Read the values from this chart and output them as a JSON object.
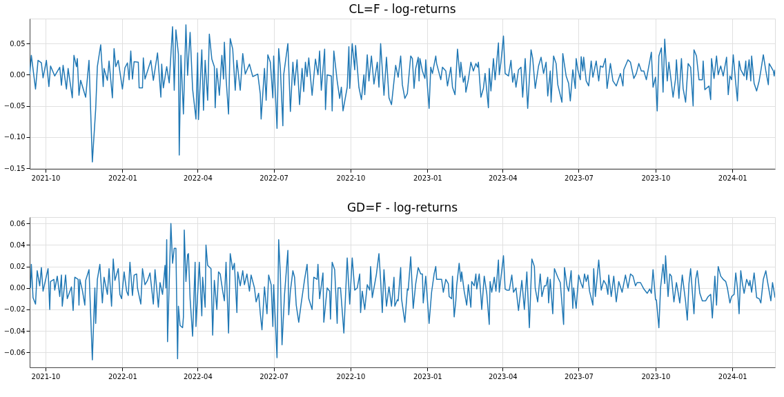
{
  "chart_data": [
    {
      "type": "line",
      "title": "CL=F - log-returns",
      "grid": true,
      "xlim": [
        "2021-09-12",
        "2024-02-21"
      ],
      "xticks": [
        "2021-10",
        "2022-01",
        "2022-04",
        "2022-07",
        "2022-10",
        "2023-01",
        "2023-04",
        "2023-07",
        "2023-10",
        "2024-01"
      ],
      "ylim": [
        -0.151,
        0.09
      ],
      "yticks": [
        {
          "value": -0.15,
          "label": "−0.15"
        },
        {
          "value": -0.1,
          "label": "−0.10"
        },
        {
          "value": -0.05,
          "label": "−0.05"
        },
        {
          "value": 0,
          "label": "0.00"
        },
        {
          "value": 0.05,
          "label": "0.05"
        }
      ],
      "x": [
        "2021-09-12",
        "2021-09-14",
        "2021-09-19",
        "2021-09-22",
        "2021-09-26",
        "2021-09-28",
        "2021-10-02",
        "2021-10-05",
        "2021-10-07",
        "2021-10-12",
        "2021-10-18",
        "2021-10-20",
        "2021-10-22",
        "2021-10-26",
        "2021-10-28",
        "2021-11-02",
        "2021-11-04",
        "2021-11-07",
        "2021-11-08",
        "2021-11-10",
        "2021-11-12",
        "2021-11-18",
        "2021-11-22",
        "2021-11-26",
        "2021-11-30",
        "2021-12-02",
        "2021-12-06",
        "2021-12-09",
        "2021-12-10",
        "2021-12-14",
        "2021-12-16",
        "2021-12-20",
        "2021-12-22",
        "2021-12-24",
        "2021-12-27",
        "2022-01-01",
        "2022-01-04",
        "2022-01-07",
        "2022-01-09",
        "2022-01-11",
        "2022-01-13",
        "2022-01-15",
        "2022-01-20",
        "2022-01-21",
        "2022-01-25",
        "2022-01-26",
        "2022-01-28",
        "2022-02-04",
        "2022-02-07",
        "2022-02-12",
        "2022-02-16",
        "2022-02-17",
        "2022-02-19",
        "2022-02-23",
        "2022-02-26",
        "2022-03-02",
        "2022-03-04",
        "2022-03-06",
        "2022-03-09",
        "2022-03-10",
        "2022-03-12",
        "2022-03-15",
        "2022-03-18",
        "2022-03-20",
        "2022-03-23",
        "2022-03-26",
        "2022-03-30",
        "2022-04-01",
        "2022-04-02",
        "2022-04-06",
        "2022-04-08",
        "2022-04-10",
        "2022-04-13",
        "2022-04-15",
        "2022-04-18",
        "2022-04-21",
        "2022-04-22",
        "2022-04-24",
        "2022-04-27",
        "2022-04-30",
        "2022-05-02",
        "2022-05-03",
        "2022-05-05",
        "2022-05-08",
        "2022-05-10",
        "2022-05-13",
        "2022-05-16",
        "2022-05-18",
        "2022-05-22",
        "2022-05-25",
        "2022-05-28",
        "2022-06-02",
        "2022-06-06",
        "2022-06-12",
        "2022-06-15",
        "2022-06-16",
        "2022-06-20",
        "2022-06-22",
        "2022-06-24",
        "2022-06-27",
        "2022-06-30",
        "2022-07-01",
        "2022-07-05",
        "2022-07-07",
        "2022-07-09",
        "2022-07-12",
        "2022-07-13",
        "2022-07-18",
        "2022-07-21",
        "2022-07-24",
        "2022-07-26",
        "2022-07-29",
        "2022-08-01",
        "2022-08-04",
        "2022-08-06",
        "2022-08-08",
        "2022-08-10",
        "2022-08-12",
        "2022-08-16",
        "2022-08-20",
        "2022-08-23",
        "2022-08-25",
        "2022-08-27",
        "2022-08-31",
        "2022-09-01",
        "2022-09-03",
        "2022-09-08",
        "2022-09-09",
        "2022-09-11",
        "2022-09-15",
        "2022-09-18",
        "2022-09-20",
        "2022-09-22",
        "2022-09-27",
        "2022-09-29",
        "2022-09-30",
        "2022-10-03",
        "2022-10-06",
        "2022-10-07",
        "2022-10-11",
        "2022-10-14",
        "2022-10-17",
        "2022-10-18",
        "2022-10-21",
        "2022-10-23",
        "2022-10-26",
        "2022-10-29",
        "2022-11-02",
        "2022-11-04",
        "2022-11-06",
        "2022-11-10",
        "2022-11-13",
        "2022-11-16",
        "2022-11-19",
        "2022-11-24",
        "2022-11-27",
        "2022-11-30",
        "2022-12-02",
        "2022-12-05",
        "2022-12-08",
        "2022-12-12",
        "2022-12-14",
        "2022-12-16",
        "2022-12-18",
        "2022-12-21",
        "2022-12-22",
        "2022-12-23",
        "2022-12-26",
        "2022-12-29",
        "2022-12-30",
        "2023-01-01",
        "2023-01-03",
        "2023-01-05",
        "2023-01-07",
        "2023-01-11",
        "2023-01-12",
        "2023-01-17",
        "2023-01-19",
        "2023-01-23",
        "2023-01-25",
        "2023-01-29",
        "2023-01-31",
        "2023-02-03",
        "2023-02-06",
        "2023-02-09",
        "2023-02-10",
        "2023-02-13",
        "2023-02-15",
        "2023-02-16",
        "2023-02-19",
        "2023-02-22",
        "2023-02-25",
        "2023-02-28",
        "2023-03-02",
        "2023-03-03",
        "2023-03-06",
        "2023-03-09",
        "2023-03-11",
        "2023-03-15",
        "2023-03-16",
        "2023-03-18",
        "2023-03-21",
        "2023-03-23",
        "2023-03-27",
        "2023-03-28",
        "2023-03-30",
        "2023-04-02",
        "2023-04-04",
        "2023-04-08",
        "2023-04-11",
        "2023-04-13",
        "2023-04-15",
        "2023-04-17",
        "2023-04-20",
        "2023-04-23",
        "2023-04-25",
        "2023-04-28",
        "2023-05-01",
        "2023-05-05",
        "2023-05-07",
        "2023-05-10",
        "2023-05-14",
        "2023-05-17",
        "2023-05-20",
        "2023-05-23",
        "2023-05-25",
        "2023-05-28",
        "2023-05-29",
        "2023-06-01",
        "2023-06-04",
        "2023-06-06",
        "2023-06-11",
        "2023-06-12",
        "2023-06-16",
        "2023-06-19",
        "2023-06-21",
        "2023-06-24",
        "2023-06-27",
        "2023-06-28",
        "2023-06-30",
        "2023-07-03",
        "2023-07-04",
        "2023-07-06",
        "2023-07-07",
        "2023-07-10",
        "2023-07-13",
        "2023-07-16",
        "2023-07-18",
        "2023-07-22",
        "2023-07-25",
        "2023-07-27",
        "2023-07-30",
        "2023-08-02",
        "2023-08-04",
        "2023-08-08",
        "2023-08-11",
        "2023-08-15",
        "2023-08-20",
        "2023-08-23",
        "2023-08-24",
        "2023-08-29",
        "2023-09-01",
        "2023-09-05",
        "2023-09-08",
        "2023-09-11",
        "2023-09-14",
        "2023-09-17",
        "2023-09-20",
        "2023-09-26",
        "2023-09-28",
        "2023-10-01",
        "2023-10-03",
        "2023-10-05",
        "2023-10-08",
        "2023-10-10",
        "2023-10-12",
        "2023-10-15",
        "2023-10-17",
        "2023-10-22",
        "2023-10-25",
        "2023-10-26",
        "2023-10-29",
        "2023-11-01",
        "2023-11-03",
        "2023-11-06",
        "2023-11-09",
        "2023-11-12",
        "2023-11-15",
        "2023-11-16",
        "2023-11-19",
        "2023-11-22",
        "2023-11-26",
        "2023-11-27",
        "2023-11-29",
        "2023-12-04",
        "2023-12-06",
        "2023-12-07",
        "2023-12-10",
        "2023-12-13",
        "2023-12-15",
        "2023-12-18",
        "2023-12-21",
        "2023-12-25",
        "2023-12-27",
        "2023-12-29",
        "2023-12-31",
        "2024-01-02",
        "2024-01-05",
        "2024-01-07",
        "2024-01-09",
        "2024-01-11",
        "2024-01-15",
        "2024-01-17",
        "2024-01-18",
        "2024-01-21",
        "2024-01-23",
        "2024-01-24",
        "2024-01-27",
        "2024-01-30",
        "2024-02-02",
        "2024-02-04",
        "2024-02-07",
        "2024-02-10",
        "2024-02-13",
        "2024-02-14",
        "2024-02-19",
        "2024-02-20",
        "2024-02-21"
      ],
      "series": [
        {
          "color": "#1f77b4",
          "values": [
            0.0,
            0.031,
            -0.023,
            0.023,
            0.019,
            -0.005,
            0.023,
            -0.019,
            0.014,
            -0.002,
            0.012,
            -0.017,
            0.015,
            -0.023,
            0.01,
            -0.037,
            0.031,
            0.013,
            0.026,
            -0.033,
            -0.009,
            -0.036,
            0.023,
            -0.14,
            -0.055,
            0.013,
            0.048,
            -0.019,
            0.01,
            -0.009,
            0.022,
            -0.037,
            0.042,
            0.013,
            0.023,
            -0.023,
            0.011,
            0.019,
            -0.008,
            0.038,
            -0.007,
            0.021,
            0.02,
            -0.021,
            -0.021,
            0.027,
            -0.007,
            0.023,
            -0.009,
            0.035,
            -0.036,
            0.017,
            -0.021,
            0.013,
            -0.013,
            0.077,
            -0.025,
            0.072,
            0.033,
            -0.129,
            0.031,
            -0.063,
            0.08,
            -0.001,
            0.068,
            -0.023,
            -0.071,
            0.035,
            -0.072,
            0.04,
            -0.057,
            0.023,
            -0.041,
            0.065,
            0.025,
            0.013,
            -0.053,
            0.01,
            -0.033,
            0.031,
            -0.007,
            0.052,
            -0.005,
            -0.063,
            0.058,
            0.041,
            -0.025,
            0.023,
            -0.025,
            0.034,
            0.001,
            0.017,
            -0.003,
            0.001,
            -0.031,
            -0.071,
            0.01,
            -0.041,
            0.032,
            0.02,
            -0.037,
            0.03,
            -0.086,
            0.042,
            0.01,
            -0.082,
            0.0,
            0.05,
            -0.059,
            0.02,
            -0.017,
            0.024,
            -0.048,
            0.01,
            -0.027,
            0.02,
            -0.003,
            0.027,
            -0.033,
            0.025,
            0.0,
            0.038,
            -0.025,
            0.041,
            -0.056,
            0.0,
            -0.002,
            -0.058,
            0.038,
            -0.01,
            -0.038,
            -0.02,
            -0.058,
            -0.02,
            0.045,
            -0.022,
            0.05,
            0.008,
            0.047,
            -0.02,
            -0.04,
            0.0,
            -0.032,
            0.032,
            -0.01,
            0.03,
            -0.015,
            0.02,
            -0.02,
            0.05,
            -0.033,
            0.028,
            -0.037,
            -0.048,
            0.015,
            -0.004,
            0.03,
            -0.016,
            -0.038,
            -0.03,
            0.03,
            0.026,
            -0.022,
            0.01,
            0.028,
            -0.01,
            0.026,
            0.006,
            -0.006,
            0.024,
            -0.018,
            -0.054,
            0.012,
            0.002,
            0.03,
            0.018,
            -0.008,
            0.012,
            0.006,
            -0.018,
            0.012,
            -0.02,
            -0.032,
            0.041,
            -0.004,
            0.02,
            -0.012,
            -0.002,
            -0.028,
            -0.008,
            0.02,
            0.006,
            0.018,
            0.012,
            0.02,
            -0.036,
            -0.022,
            0.002,
            -0.053,
            0.01,
            -0.026,
            0.026,
            -0.008,
            0.051,
            0.0,
            0.02,
            0.062,
            0.002,
            -0.002,
            0.023,
            -0.012,
            0.002,
            -0.02,
            0.008,
            0.012,
            -0.036,
            0.026,
            -0.054,
            0.04,
            0.026,
            -0.022,
            0.014,
            0.028,
            0.002,
            0.02,
            -0.034,
            0.006,
            -0.044,
            0.03,
            0.018,
            -0.016,
            -0.044,
            0.034,
            -0.002,
            -0.014,
            -0.042,
            0.008,
            -0.022,
            0.026,
            0.008,
            -0.008,
            0.029,
            0.006,
            0.028,
            -0.01,
            -0.018,
            0.022,
            -0.004,
            0.022,
            -0.01,
            0.014,
            0.012,
            0.026,
            -0.022,
            0.018,
            -0.01,
            -0.018,
            0.002,
            -0.018,
            0.008,
            0.024,
            0.02,
            -0.006,
            0.002,
            0.018,
            0.006,
            0.006,
            -0.008,
            0.036,
            -0.02,
            -0.004,
            -0.058,
            0.03,
            0.043,
            -0.028,
            0.057,
            -0.01,
            0.02,
            -0.036,
            -0.006,
            0.024,
            -0.038,
            0.026,
            -0.022,
            -0.044,
            0.018,
            0.012,
            -0.05,
            0.04,
            0.03,
            -0.008,
            -0.008,
            0.022,
            -0.024,
            -0.018,
            -0.04,
            0.026,
            -0.006,
            0.03,
            0.0,
            0.014,
            -0.002,
            0.028,
            -0.032,
            -0.002,
            -0.008,
            0.032,
            -0.014,
            -0.042,
            0.022,
            0.008,
            -0.002,
            0.022,
            -0.008,
            0.024,
            -0.01,
            0.03,
            -0.014,
            -0.026,
            -0.01,
            0.006,
            0.032,
            0.006,
            -0.016,
            0.018,
            0.006,
            -0.002,
            0.008
          ]
        }
      ]
    },
    {
      "type": "line",
      "title": "GD=F - log-returns",
      "grid": true,
      "xlim": [
        "2021-09-12",
        "2024-02-21"
      ],
      "xticks": [
        "2021-10",
        "2022-01",
        "2022-04",
        "2022-07",
        "2022-10",
        "2023-01",
        "2023-04",
        "2023-07",
        "2023-10",
        "2024-01"
      ],
      "ylim": [
        -0.074,
        0.066
      ],
      "yticks": [
        {
          "value": -0.06,
          "label": "−0.06"
        },
        {
          "value": -0.04,
          "label": "−0.04"
        },
        {
          "value": -0.02,
          "label": "−0.02"
        },
        {
          "value": 0,
          "label": "0.00"
        },
        {
          "value": 0.02,
          "label": "0.02"
        },
        {
          "value": 0.04,
          "label": "0.04"
        },
        {
          "value": 0.06,
          "label": "0.06"
        }
      ],
      "x": [
        "2021-09-13",
        "2021-09-14",
        "2021-09-16",
        "2021-09-19",
        "2021-09-21",
        "2021-09-24",
        "2021-09-26",
        "2021-09-28",
        "2021-10-04",
        "2021-10-06",
        "2021-10-07",
        "2021-10-11",
        "2021-10-12",
        "2021-10-15",
        "2021-10-18",
        "2021-10-20",
        "2021-10-21",
        "2021-10-25",
        "2021-10-27",
        "2021-11-01",
        "2021-11-03",
        "2021-11-05",
        "2021-11-09",
        "2021-11-10",
        "2021-11-11",
        "2021-11-14",
        "2021-11-17",
        "2021-11-18",
        "2021-11-22",
        "2021-11-26",
        "2021-11-29",
        "2021-11-30",
        "2021-12-02",
        "2021-12-05",
        "2021-12-08",
        "2021-12-10",
        "2021-12-14",
        "2021-12-16",
        "2021-12-19",
        "2021-12-21",
        "2021-12-23",
        "2021-12-27",
        "2021-12-29",
        "2021-12-31",
        "2022-01-03",
        "2022-01-06",
        "2022-01-08",
        "2022-01-10",
        "2022-01-13",
        "2022-01-15",
        "2022-01-18",
        "2022-01-19",
        "2022-01-23",
        "2022-01-25",
        "2022-01-28",
        "2022-01-31",
        "2022-02-03",
        "2022-02-07",
        "2022-02-09",
        "2022-02-13",
        "2022-02-15",
        "2022-02-18",
        "2022-02-21",
        "2022-02-22",
        "2022-02-23",
        "2022-02-24",
        "2022-02-28",
        "2022-03-02",
        "2022-03-04",
        "2022-03-06",
        "2022-03-08",
        "2022-03-09",
        "2022-03-11",
        "2022-03-14",
        "2022-03-15",
        "2022-03-16",
        "2022-03-18",
        "2022-03-20",
        "2022-03-21",
        "2022-03-23",
        "2022-03-26",
        "2022-03-29",
        "2022-03-30",
        "2022-04-03",
        "2022-04-06",
        "2022-04-07",
        "2022-04-10",
        "2022-04-11",
        "2022-04-13",
        "2022-04-17",
        "2022-04-19",
        "2022-04-21",
        "2022-04-24",
        "2022-04-26",
        "2022-04-28",
        "2022-05-01",
        "2022-05-03",
        "2022-05-05",
        "2022-05-08",
        "2022-05-10",
        "2022-05-13",
        "2022-05-15",
        "2022-05-18",
        "2022-05-19",
        "2022-05-22",
        "2022-05-25",
        "2022-05-27",
        "2022-05-30",
        "2022-06-02",
        "2022-06-04",
        "2022-06-08",
        "2022-06-10",
        "2022-06-13",
        "2022-06-15",
        "2022-06-17",
        "2022-06-20",
        "2022-06-23",
        "2022-06-25",
        "2022-06-28",
        "2022-06-30",
        "2022-07-01",
        "2022-07-05",
        "2022-07-07",
        "2022-07-09",
        "2022-07-11",
        "2022-07-14",
        "2022-07-18",
        "2022-07-19",
        "2022-07-21",
        "2022-07-24",
        "2022-07-26",
        "2022-07-28",
        "2022-07-31",
        "2022-08-03",
        "2022-08-07",
        "2022-08-10",
        "2022-08-12",
        "2022-08-16",
        "2022-08-18",
        "2022-08-22",
        "2022-08-23",
        "2022-08-25",
        "2022-08-29",
        "2022-08-30",
        "2022-09-03",
        "2022-09-06",
        "2022-09-07",
        "2022-09-09",
        "2022-09-12",
        "2022-09-15",
        "2022-09-16",
        "2022-09-19",
        "2022-09-23",
        "2022-09-27",
        "2022-09-30",
        "2022-10-03",
        "2022-10-06",
        "2022-10-09",
        "2022-10-12",
        "2022-10-13",
        "2022-10-15",
        "2022-10-18",
        "2022-10-21",
        "2022-10-24",
        "2022-10-25",
        "2022-10-27",
        "2022-11-01",
        "2022-11-04",
        "2022-11-06",
        "2022-11-08",
        "2022-11-10",
        "2022-11-13",
        "2022-11-16",
        "2022-11-19",
        "2022-11-22",
        "2022-11-23",
        "2022-11-26",
        "2022-11-27",
        "2022-11-30",
        "2022-12-01",
        "2022-12-05",
        "2022-12-08",
        "2022-12-09",
        "2022-12-12",
        "2022-12-15",
        "2022-12-18",
        "2022-12-21",
        "2022-12-24",
        "2022-12-26",
        "2022-12-27",
        "2022-12-30",
        "2023-01-03",
        "2023-01-06",
        "2023-01-09",
        "2023-01-11",
        "2023-01-12",
        "2023-01-18",
        "2023-01-20",
        "2023-01-23",
        "2023-01-26",
        "2023-01-27",
        "2023-01-30",
        "2023-01-31",
        "2023-02-02",
        "2023-02-04",
        "2023-02-05",
        "2023-02-08",
        "2023-02-10",
        "2023-02-11",
        "2023-02-14",
        "2023-02-17",
        "2023-02-19",
        "2023-02-22",
        "2023-02-23",
        "2023-02-26",
        "2023-02-28",
        "2023-03-01",
        "2023-03-04",
        "2023-03-06",
        "2023-03-07",
        "2023-03-10",
        "2023-03-13",
        "2023-03-16",
        "2023-03-17",
        "2023-03-19",
        "2023-03-22",
        "2023-03-24",
        "2023-03-27",
        "2023-03-28",
        "2023-04-02",
        "2023-04-04",
        "2023-04-06",
        "2023-04-09",
        "2023-04-12",
        "2023-04-14",
        "2023-04-17",
        "2023-04-20",
        "2023-04-24",
        "2023-04-27",
        "2023-04-30",
        "2023-05-03",
        "2023-05-06",
        "2023-05-09",
        "2023-05-10",
        "2023-05-13",
        "2023-05-16",
        "2023-05-18",
        "2023-05-21",
        "2023-05-23",
        "2023-05-25",
        "2023-05-26",
        "2023-05-28",
        "2023-05-31",
        "2023-06-02",
        "2023-06-06",
        "2023-06-09",
        "2023-06-13",
        "2023-06-14",
        "2023-06-17",
        "2023-06-19",
        "2023-06-22",
        "2023-06-24",
        "2023-06-25",
        "2023-06-28",
        "2023-07-01",
        "2023-07-04",
        "2023-07-06",
        "2023-07-08",
        "2023-07-10",
        "2023-07-12",
        "2023-07-14",
        "2023-07-18",
        "2023-07-19",
        "2023-07-21",
        "2023-07-25",
        "2023-07-28",
        "2023-07-31",
        "2023-08-03",
        "2023-08-05",
        "2023-08-06",
        "2023-08-09",
        "2023-08-12",
        "2023-08-15",
        "2023-08-18",
        "2023-08-22",
        "2023-08-26",
        "2023-08-29",
        "2023-09-01",
        "2023-09-04",
        "2023-09-07",
        "2023-09-09",
        "2023-09-13",
        "2023-09-17",
        "2023-09-21",
        "2023-09-24",
        "2023-09-26",
        "2023-09-28",
        "2023-10-01",
        "2023-10-02",
        "2023-10-05",
        "2023-10-07",
        "2023-10-10",
        "2023-10-12",
        "2023-10-13",
        "2023-10-16",
        "2023-10-18",
        "2023-10-20",
        "2023-10-23",
        "2023-10-26",
        "2023-10-28",
        "2023-10-30",
        "2023-11-02",
        "2023-11-06",
        "2023-11-08",
        "2023-11-10",
        "2023-11-12",
        "2023-11-16",
        "2023-11-18",
        "2023-11-20",
        "2023-11-23",
        "2023-11-26",
        "2023-11-30",
        "2023-12-03",
        "2023-12-06",
        "2023-12-08",
        "2023-12-11",
        "2023-12-13",
        "2023-12-15",
        "2023-12-18",
        "2023-12-21",
        "2023-12-24",
        "2023-12-26",
        "2023-12-29",
        "2023-12-31",
        "2024-01-03",
        "2024-01-05",
        "2024-01-07",
        "2024-01-09",
        "2024-01-11",
        "2024-01-13",
        "2024-01-15",
        "2024-01-18",
        "2024-01-21",
        "2024-01-22",
        "2024-01-24",
        "2024-01-27",
        "2024-01-30",
        "2024-02-02",
        "2024-02-04",
        "2024-02-07",
        "2024-02-10",
        "2024-02-12",
        "2024-02-16",
        "2024-02-18",
        "2024-02-21"
      ],
      "series": [
        {
          "color": "#1f77b4",
          "values": [
            0.0,
            0.022,
            -0.009,
            -0.015,
            0.016,
            0.002,
            0.019,
            -0.003,
            0.018,
            -0.02,
            0.006,
            0.008,
            -0.002,
            0.011,
            -0.008,
            0.012,
            -0.017,
            0.012,
            -0.01,
            0.001,
            -0.021,
            0.01,
            0.008,
            -0.016,
            0.008,
            -0.002,
            -0.016,
            0.007,
            0.017,
            -0.067,
            0.0,
            -0.033,
            0.008,
            0.022,
            -0.014,
            0.01,
            -0.006,
            0.018,
            -0.017,
            0.027,
            0.007,
            0.018,
            -0.006,
            -0.01,
            0.015,
            -0.003,
            -0.007,
            0.024,
            -0.007,
            0.012,
            0.013,
            0.0,
            -0.015,
            0.018,
            0.003,
            0.007,
            0.014,
            -0.015,
            0.017,
            -0.018,
            0.005,
            -0.006,
            0.021,
            0.0,
            0.045,
            -0.05,
            0.06,
            0.023,
            0.037,
            0.037,
            -0.066,
            -0.017,
            -0.035,
            -0.037,
            -0.027,
            0.054,
            0.006,
            0.031,
            0.032,
            -0.01,
            -0.045,
            0.024,
            -0.036,
            0.024,
            -0.026,
            0.01,
            -0.018,
            0.04,
            0.021,
            0.018,
            -0.044,
            0.007,
            -0.02,
            0.015,
            0.013,
            -0.003,
            -0.012,
            0.024,
            -0.042,
            0.032,
            0.017,
            0.023,
            -0.023,
            0.015,
            0.002,
            0.016,
            0.003,
            0.013,
            -0.003,
            0.012,
            0.0,
            -0.013,
            -0.005,
            -0.024,
            -0.039,
            0.001,
            -0.024,
            0.012,
            0.003,
            -0.036,
            0.003,
            -0.065,
            0.045,
            0.012,
            -0.053,
            -0.006,
            0.035,
            -0.025,
            -0.003,
            0.016,
            0.01,
            -0.016,
            -0.032,
            -0.014,
            0.008,
            0.022,
            -0.01,
            -0.02,
            0.01,
            0.008,
            0.022,
            -0.01,
            0.014,
            -0.032,
            0.0,
            -0.003,
            -0.029,
            0.024,
            0.017,
            -0.033,
            0.0,
            0.0,
            -0.042,
            0.028,
            -0.015,
            0.028,
            -0.002,
            0.0,
            0.013,
            -0.023,
            -0.003,
            -0.02,
            0.003,
            -0.002,
            0.02,
            -0.009,
            0.013,
            0.032,
            0.007,
            -0.023,
            0.017,
            -0.017,
            0.001,
            -0.017,
            0.01,
            -0.017,
            -0.011,
            -0.012,
            0.019,
            -0.01,
            -0.032,
            -0.001,
            -0.002,
            0.029,
            -0.019,
            0.004,
            0.019,
            0.013,
            0.013,
            -0.014,
            0.011,
            -0.033,
            -0.004,
            0.013,
            0.02,
            0.008,
            0.008,
            -0.004,
            0.008,
            0.004,
            -0.008,
            -0.01,
            0.011,
            -0.027,
            -0.012,
            0.002,
            0.023,
            0.006,
            0.015,
            -0.003,
            -0.016,
            0.003,
            -0.018,
            0.006,
            0.002,
            0.013,
            -0.001,
            0.013,
            -0.008,
            -0.02,
            0.011,
            -0.005,
            -0.034,
            0.006,
            -0.004,
            0.01,
            -0.003,
            0.026,
            -0.004,
            0.03,
            -0.001,
            -0.002,
            -0.002,
            0.012,
            -0.004,
            0.0,
            -0.021,
            0.007,
            -0.02,
            0.015,
            -0.037,
            0.027,
            0.02,
            0.0,
            -0.013,
            0.013,
            -0.008,
            0.002,
            0.002,
            0.01,
            -0.014,
            0.008,
            -0.024,
            0.018,
            0.01,
            0.005,
            -0.034,
            0.019,
            0.002,
            -0.003,
            0.016,
            -0.019,
            0.0,
            -0.019,
            0.012,
            0.004,
            0.0,
            0.013,
            0.006,
            0.012,
            -0.003,
            -0.016,
            0.018,
            -0.008,
            0.026,
            -0.002,
            0.007,
            0.003,
            -0.006,
            0.012,
            -0.008,
            0.011,
            -0.013,
            0.006,
            -0.004,
            0.012,
            0.0,
            0.013,
            0.011,
            0.002,
            0.005,
            0.005,
            -0.001,
            -0.005,
            -0.001,
            -0.005,
            0.017,
            -0.011,
            -0.011,
            -0.037,
            0.0,
            0.022,
            0.004,
            0.03,
            -0.008,
            0.013,
            0.011,
            -0.013,
            0.005,
            -0.004,
            -0.014,
            0.012,
            -0.013,
            -0.03,
            0.004,
            0.018,
            -0.024,
            0.008,
            0.016,
            -0.005,
            -0.012,
            -0.012,
            -0.008,
            -0.006,
            -0.028,
            0.011,
            -0.016,
            0.02,
            0.011,
            0.008,
            0.006,
            0.0,
            -0.014,
            -0.008,
            -0.006,
            0.014,
            0.0,
            -0.024,
            0.016,
            0.004,
            -0.005,
            0.008,
            0.002,
            0.007,
            -0.004,
            0.014,
            -0.009,
            -0.01,
            -0.014,
            0.008,
            0.016,
            0.006,
            -0.012,
            0.005,
            -0.009
          ]
        }
      ]
    }
  ]
}
